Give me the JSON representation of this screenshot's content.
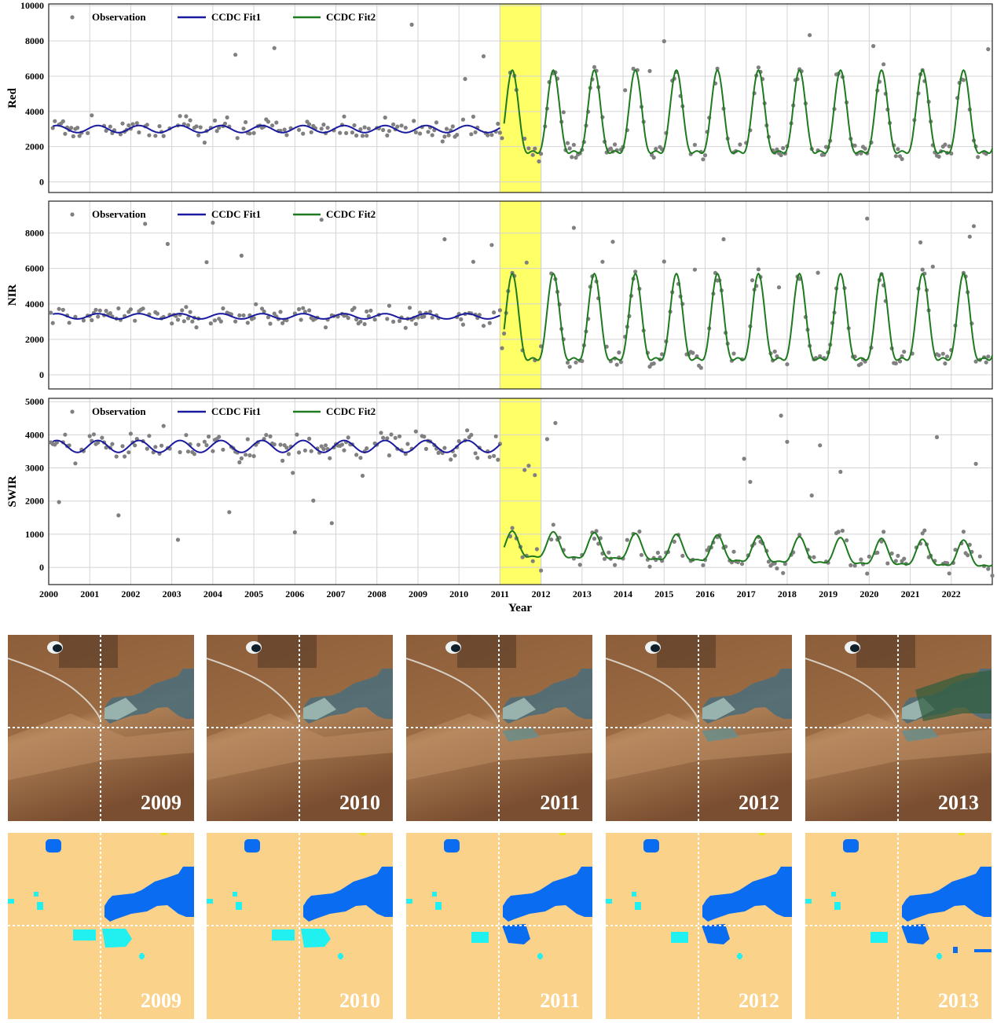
{
  "chart_data": [
    {
      "type": "scatter+line",
      "ylabel": "Red",
      "ylim": [
        -600,
        10100
      ],
      "yticks": [
        0,
        2000,
        4000,
        6000,
        8000,
        10000
      ],
      "legend": [
        "Observation",
        "CCDC Fit1",
        "CCDC Fit2"
      ],
      "fit1": {
        "start": 2000.1,
        "end": 2011.0,
        "mean": 3000,
        "amplitude": 200
      },
      "fit2": {
        "start": 2011.1,
        "end": 2023.0,
        "mean": 3250,
        "amplitude": 2750,
        "trend_per_year": 0
      },
      "obs_noise": 350
    },
    {
      "type": "scatter+line",
      "ylabel": "NIR",
      "ylim": [
        -800,
        9800
      ],
      "yticks": [
        0,
        2000,
        4000,
        6000,
        8000
      ],
      "legend": [
        "Observation",
        "CCDC Fit1",
        "CCDC Fit2"
      ],
      "fit1": {
        "start": 2000.1,
        "end": 2011.0,
        "mean": 3300,
        "amplitude": 150
      },
      "fit2": {
        "start": 2011.1,
        "end": 2023.0,
        "mean": 2500,
        "amplitude": 2850,
        "trend_per_year": 0
      },
      "obs_noise": 350
    },
    {
      "type": "scatter+line",
      "ylabel": "SWIR",
      "ylim": [
        -520,
        5100
      ],
      "yticks": [
        0,
        1000,
        2000,
        3000,
        4000,
        5000
      ],
      "legend": [
        "Observation",
        "CCDC Fit1",
        "CCDC Fit2"
      ],
      "fit1": {
        "start": 2000.1,
        "end": 2011.0,
        "mean": 3650,
        "amplitude": 180
      },
      "fit2": {
        "start": 2011.1,
        "end": 2023.0,
        "mean": 600,
        "amplitude": 450,
        "trend_per_year": -25
      },
      "obs_noise": 250
    }
  ],
  "xaxis": {
    "label": "Year",
    "ticks": [
      "2000",
      "2001",
      "2002",
      "2003",
      "2004",
      "2005",
      "2006",
      "2007",
      "2008",
      "2009",
      "2010",
      "2011",
      "2012",
      "2013",
      "2014",
      "2015",
      "2016",
      "2017",
      "2018",
      "2019",
      "2020",
      "2021",
      "2022"
    ],
    "xlim": [
      2000,
      2023
    ]
  },
  "highlight": {
    "start": 2011,
    "end": 2012,
    "color": "#FFFF66"
  },
  "colors": {
    "observation": "#808080",
    "fit1": "#1A1AA0",
    "fit2": "#1E7A1E",
    "land": "#FBD28A",
    "water": "#0A6CF0",
    "new_water": "#20F0F0"
  },
  "images": {
    "years": [
      "2009",
      "2010",
      "2011",
      "2012",
      "2013"
    ]
  }
}
